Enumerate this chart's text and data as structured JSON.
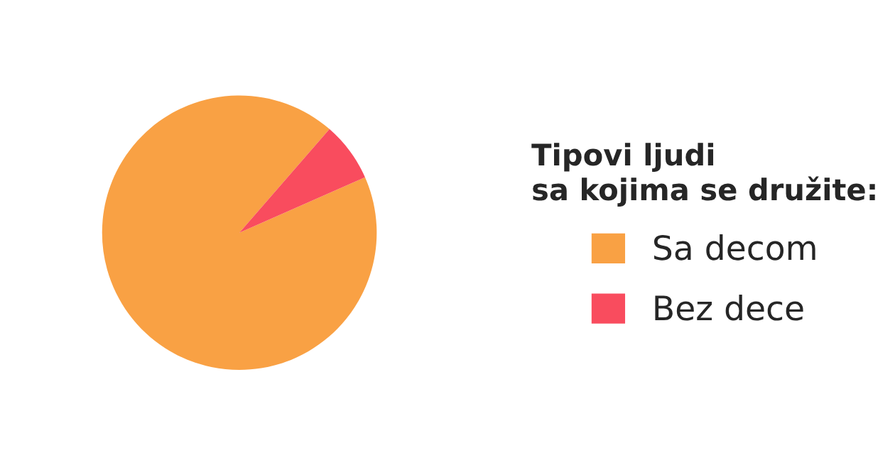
{
  "chart_data": {
    "type": "pie",
    "legend_title": "Tipovi ljudi\nsa kojima se družite:",
    "categories": [
      "Sa decom",
      "Bez dece"
    ],
    "values": [
      93,
      7
    ],
    "colors": [
      "#f9a144",
      "#f94c5e"
    ],
    "legend": "right"
  }
}
